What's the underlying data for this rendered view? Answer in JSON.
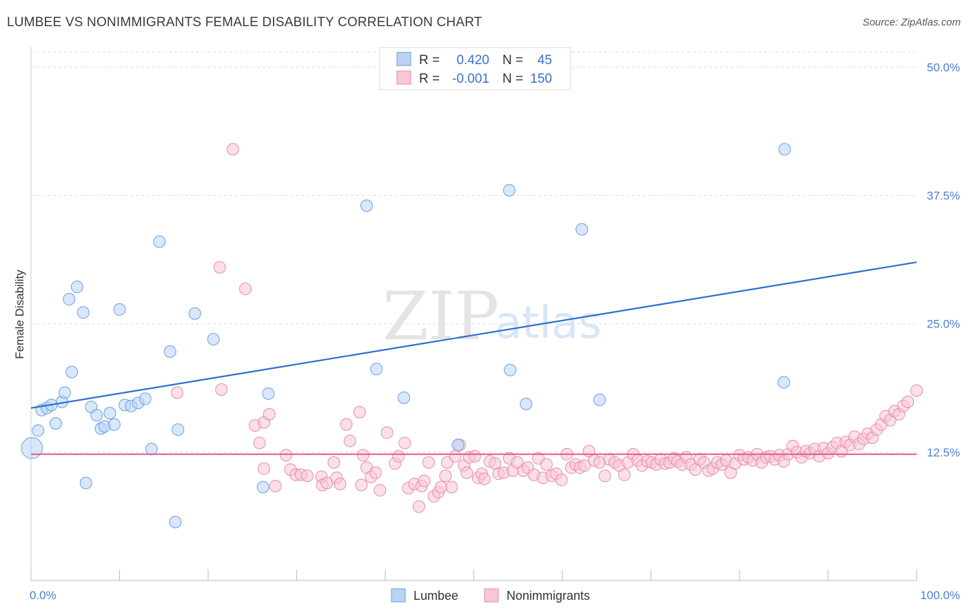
{
  "title": "LUMBEE VS NONIMMIGRANTS FEMALE DISABILITY CORRELATION CHART",
  "source": "Source: ZipAtlas.com",
  "watermark": {
    "zip": "ZIP",
    "atlas": "atlas"
  },
  "colors": {
    "lumbee_fill": "#b8d3f5",
    "lumbee_stroke": "#6a9ee0",
    "lumbee_line": "#2a6fcf",
    "non_fill": "#f8c6d6",
    "non_stroke": "#e88aa8",
    "non_line": "#e5608a",
    "grid": "#dddddd",
    "axis_text": "#4a7fd0"
  },
  "legend": {
    "rows": [
      {
        "r_label": "R =",
        "r_value": "0.420",
        "n_label": "N =",
        "n_value": "45"
      },
      {
        "r_label": "R =",
        "r_value": "-0.001",
        "n_label": "N =",
        "n_value": "150"
      }
    ]
  },
  "bottom_legend": [
    "Lumbee",
    "Nonimmigrants"
  ],
  "chart_data": {
    "type": "scatter",
    "title": "LUMBEE VS NONIMMIGRANTS FEMALE DISABILITY CORRELATION CHART",
    "xlabel": "",
    "ylabel": "Female Disability",
    "xlim": [
      0,
      100
    ],
    "ylim": [
      0,
      51.5
    ],
    "x_tick_labels": [
      "0.0%",
      "100.0%"
    ],
    "y_ticks": [
      12.5,
      25.0,
      37.5,
      50.0
    ],
    "y_tick_labels": [
      "12.5%",
      "25.0%",
      "37.5%",
      "50.0%"
    ],
    "grid": true,
    "legend_position": "top-center",
    "series": [
      {
        "name": "Lumbee",
        "trend": {
          "x": [
            0,
            100
          ],
          "y": [
            16.8,
            31.0
          ]
        },
        "points": [
          [
            0.1,
            12.9,
            1.8
          ],
          [
            0.8,
            14.6,
            1
          ],
          [
            1.2,
            16.6,
            1
          ],
          [
            1.8,
            16.8,
            1
          ],
          [
            2.3,
            17.1,
            1
          ],
          [
            2.8,
            15.3,
            1
          ],
          [
            3.5,
            17.4,
            1
          ],
          [
            3.8,
            18.3,
            1
          ],
          [
            4.3,
            27.4,
            1
          ],
          [
            4.6,
            20.3,
            1
          ],
          [
            5.2,
            28.6,
            1
          ],
          [
            5.9,
            26.1,
            1
          ],
          [
            6.2,
            9.5,
            1
          ],
          [
            6.8,
            16.9,
            1
          ],
          [
            7.4,
            16.1,
            1
          ],
          [
            7.9,
            14.8,
            1
          ],
          [
            8.3,
            15.0,
            1
          ],
          [
            8.9,
            16.3,
            1
          ],
          [
            9.4,
            15.2,
            1
          ],
          [
            10.0,
            26.4,
            1
          ],
          [
            10.6,
            17.1,
            1
          ],
          [
            11.3,
            17.0,
            1
          ],
          [
            12.1,
            17.3,
            1
          ],
          [
            12.9,
            17.7,
            1
          ],
          [
            13.6,
            12.8,
            1
          ],
          [
            14.5,
            33.0,
            1
          ],
          [
            15.7,
            22.3,
            1
          ],
          [
            16.3,
            5.7,
            1
          ],
          [
            16.6,
            14.7,
            1
          ],
          [
            18.5,
            26.0,
            1
          ],
          [
            20.6,
            23.5,
            1
          ],
          [
            26.2,
            9.1,
            1
          ],
          [
            26.8,
            18.2,
            1
          ],
          [
            37.9,
            36.5,
            1
          ],
          [
            39.0,
            20.6,
            1
          ],
          [
            42.1,
            17.8,
            1
          ],
          [
            48.2,
            13.2,
            1
          ],
          [
            54.0,
            38.0,
            1
          ],
          [
            54.1,
            20.5,
            1
          ],
          [
            55.9,
            17.2,
            1
          ],
          [
            62.2,
            34.2,
            1
          ],
          [
            64.2,
            17.6,
            1
          ],
          [
            85.0,
            19.3,
            1
          ],
          [
            85.1,
            42.0,
            1
          ],
          [
            85.2,
            19.2,
            0.01
          ]
        ]
      },
      {
        "name": "Nonimmigrants",
        "trend": {
          "x": [
            0,
            100
          ],
          "y": [
            12.3,
            12.3
          ]
        },
        "points": [
          [
            22.8,
            42.0,
            1
          ],
          [
            21.3,
            30.5,
            1
          ],
          [
            24.2,
            28.4,
            1
          ],
          [
            16.5,
            18.3,
            1
          ],
          [
            21.5,
            18.6,
            1
          ],
          [
            25.3,
            15.1,
            1
          ],
          [
            26.3,
            15.4,
            1
          ],
          [
            26.9,
            16.2,
            1
          ],
          [
            25.8,
            13.4,
            1
          ],
          [
            26.3,
            10.9,
            1
          ],
          [
            27.6,
            9.2,
            1
          ],
          [
            28.8,
            12.2,
            1
          ],
          [
            29.3,
            10.8,
            1
          ],
          [
            29.9,
            10.3,
            1
          ],
          [
            30.5,
            10.3,
            1
          ],
          [
            31.2,
            10.2,
            1
          ],
          [
            32.8,
            10.1,
            1
          ],
          [
            32.9,
            9.3,
            1
          ],
          [
            33.4,
            9.5,
            1
          ],
          [
            34.2,
            11.5,
            1
          ],
          [
            34.5,
            10.0,
            1
          ],
          [
            34.9,
            9.4,
            1
          ],
          [
            35.6,
            15.2,
            1
          ],
          [
            36.0,
            13.6,
            1
          ],
          [
            37.1,
            16.4,
            1
          ],
          [
            37.3,
            9.3,
            1
          ],
          [
            37.5,
            12.2,
            1
          ],
          [
            37.9,
            11.0,
            1
          ],
          [
            38.4,
            10.1,
            1
          ],
          [
            38.9,
            10.5,
            1
          ],
          [
            39.4,
            8.8,
            1
          ],
          [
            40.2,
            14.4,
            1
          ],
          [
            41.1,
            11.4,
            1
          ],
          [
            41.5,
            12.1,
            1
          ],
          [
            42.2,
            13.4,
            1
          ],
          [
            42.6,
            9.0,
            1
          ],
          [
            43.3,
            9.4,
            1
          ],
          [
            43.8,
            7.2,
            1
          ],
          [
            44.1,
            9.2,
            1
          ],
          [
            44.4,
            9.7,
            1
          ],
          [
            44.9,
            11.5,
            1
          ],
          [
            45.5,
            8.2,
            1
          ],
          [
            46.0,
            8.6,
            1
          ],
          [
            46.3,
            9.1,
            1
          ],
          [
            46.8,
            10.2,
            1
          ],
          [
            47.0,
            11.5,
            1
          ],
          [
            47.5,
            9.1,
            1
          ],
          [
            47.9,
            12.1,
            1
          ],
          [
            48.4,
            13.2,
            1
          ],
          [
            48.9,
            11.2,
            1
          ],
          [
            49.2,
            10.5,
            1
          ],
          [
            49.5,
            12.0,
            1
          ],
          [
            50.1,
            12.1,
            1
          ],
          [
            50.5,
            10.0,
            1
          ],
          [
            50.9,
            10.4,
            1
          ],
          [
            51.2,
            9.9,
            1
          ],
          [
            51.8,
            11.6,
            1
          ],
          [
            52.4,
            11.4,
            1
          ],
          [
            52.8,
            10.4,
            1
          ],
          [
            53.4,
            10.5,
            1
          ],
          [
            54.0,
            11.9,
            1
          ],
          [
            54.4,
            10.7,
            1
          ],
          [
            54.9,
            11.5,
            1
          ],
          [
            55.6,
            10.7,
            1
          ],
          [
            56.1,
            11.0,
            1
          ],
          [
            56.8,
            10.3,
            1
          ],
          [
            57.3,
            11.9,
            1
          ],
          [
            57.8,
            10.0,
            1
          ],
          [
            58.2,
            11.3,
            1
          ],
          [
            58.8,
            10.2,
            1
          ],
          [
            59.3,
            10.4,
            1
          ],
          [
            59.9,
            9.8,
            1
          ],
          [
            60.5,
            12.3,
            1
          ],
          [
            61.0,
            11.0,
            1
          ],
          [
            61.5,
            11.3,
            1
          ],
          [
            62.0,
            11.0,
            1
          ],
          [
            62.5,
            11.2,
            1
          ],
          [
            63.0,
            12.6,
            1
          ],
          [
            63.6,
            11.7,
            1
          ],
          [
            64.2,
            11.5,
            1
          ],
          [
            64.8,
            10.2,
            1
          ],
          [
            65.3,
            11.8,
            1
          ],
          [
            65.9,
            11.5,
            1
          ],
          [
            66.4,
            11.2,
            1
          ],
          [
            67.0,
            10.3,
            1
          ],
          [
            67.4,
            11.5,
            1
          ],
          [
            68.0,
            12.3,
            1
          ],
          [
            68.5,
            11.7,
            1
          ],
          [
            69.0,
            11.2,
            1
          ],
          [
            69.6,
            11.6,
            1
          ],
          [
            70.1,
            11.5,
            1
          ],
          [
            70.6,
            11.3,
            1
          ],
          [
            71.1,
            11.8,
            1
          ],
          [
            71.6,
            11.4,
            1
          ],
          [
            72.1,
            11.5,
            1
          ],
          [
            72.6,
            11.9,
            1
          ],
          [
            73.0,
            11.6,
            1
          ],
          [
            73.5,
            11.3,
            1
          ],
          [
            74.0,
            12.0,
            1
          ],
          [
            74.5,
            11.3,
            1
          ],
          [
            75.0,
            10.8,
            1
          ],
          [
            75.5,
            11.8,
            1
          ],
          [
            76.0,
            11.5,
            1
          ],
          [
            76.5,
            10.7,
            1
          ],
          [
            77.0,
            10.9,
            1
          ],
          [
            77.5,
            11.5,
            1
          ],
          [
            78.0,
            11.3,
            1
          ],
          [
            78.5,
            11.7,
            1
          ],
          [
            79.0,
            10.5,
            1
          ],
          [
            79.5,
            11.4,
            1
          ],
          [
            80.0,
            12.2,
            1
          ],
          [
            80.5,
            11.8,
            1
          ],
          [
            81.0,
            12.0,
            1
          ],
          [
            81.5,
            11.7,
            1
          ],
          [
            82.0,
            12.3,
            1
          ],
          [
            82.5,
            11.5,
            1
          ],
          [
            83.0,
            12.0,
            1
          ],
          [
            83.5,
            12.1,
            1
          ],
          [
            84.0,
            11.8,
            1
          ],
          [
            84.5,
            12.2,
            1
          ],
          [
            85.0,
            11.6,
            1
          ],
          [
            85.5,
            12.3,
            1
          ],
          [
            86.0,
            13.1,
            1
          ],
          [
            86.5,
            12.5,
            1
          ],
          [
            87.0,
            12.0,
            1
          ],
          [
            87.5,
            12.6,
            1
          ],
          [
            88.0,
            12.4,
            1
          ],
          [
            88.5,
            12.8,
            1
          ],
          [
            89.0,
            12.1,
            1
          ],
          [
            89.5,
            12.9,
            1
          ],
          [
            90.0,
            12.4,
            1
          ],
          [
            90.5,
            13.0,
            1
          ],
          [
            91.0,
            13.4,
            1
          ],
          [
            91.5,
            12.6,
            1
          ],
          [
            92.0,
            13.5,
            1
          ],
          [
            92.5,
            13.2,
            1
          ],
          [
            93.0,
            14.0,
            1
          ],
          [
            93.5,
            13.3,
            1
          ],
          [
            94.0,
            13.8,
            1
          ],
          [
            94.5,
            14.3,
            1
          ],
          [
            95.0,
            13.9,
            1
          ],
          [
            95.5,
            14.7,
            1
          ],
          [
            96.0,
            15.2,
            1
          ],
          [
            96.5,
            16.0,
            1
          ],
          [
            97.0,
            15.6,
            1
          ],
          [
            97.5,
            16.5,
            1
          ],
          [
            98.0,
            16.2,
            1
          ],
          [
            98.5,
            17.0,
            1
          ],
          [
            99.0,
            17.4,
            1
          ],
          [
            100.0,
            18.5,
            1
          ]
        ]
      }
    ]
  }
}
